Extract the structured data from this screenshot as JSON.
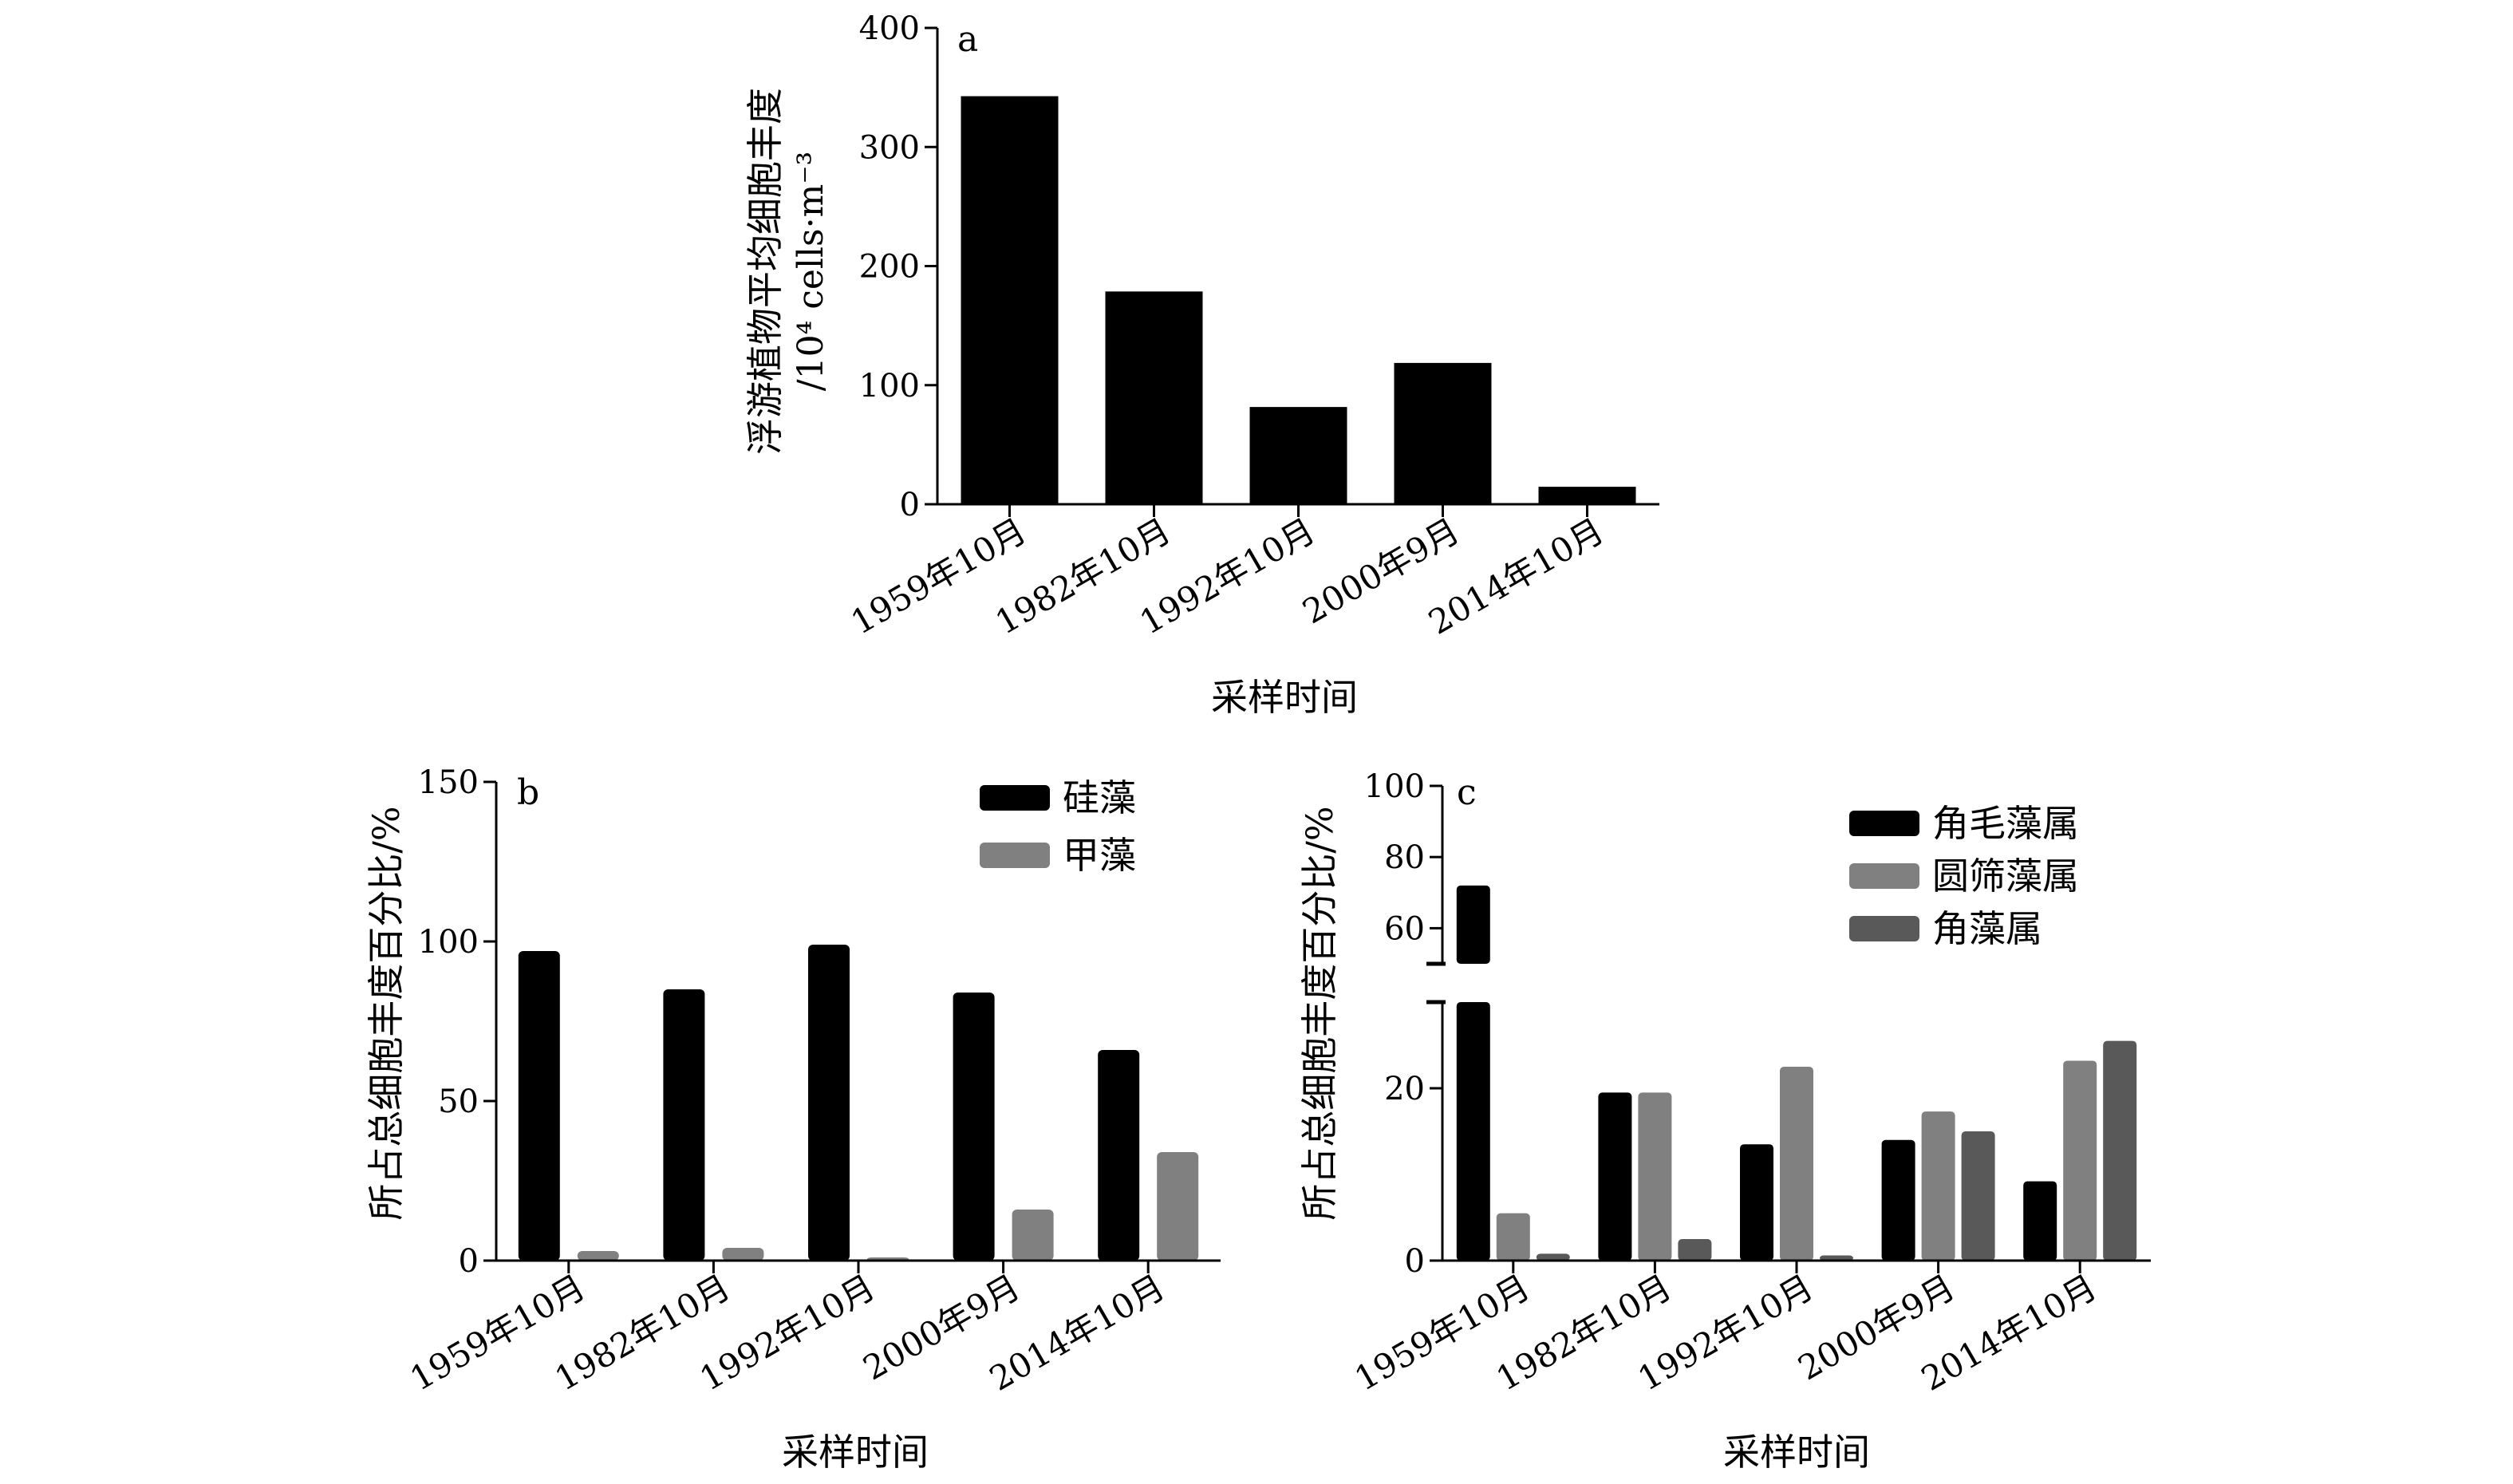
{
  "chart_data": [
    {
      "panel_label": "a",
      "type": "bar",
      "categories": [
        "1959年10月",
        "1982年10月",
        "1992年10月",
        "2000年9月",
        "2014年10月"
      ],
      "series": [
        {
          "values": [
            342,
            178,
            81,
            118,
            14
          ],
          "color": "#000000"
        }
      ],
      "xlabel": "采样时间",
      "ylabel_lines": [
        "浮游植物平均细胞丰度",
        "/10⁴ cells·m⁻³"
      ],
      "ylim": [
        0,
        400
      ],
      "yticks": [
        "0",
        "100",
        "200",
        "300",
        "400"
      ],
      "grid": false
    },
    {
      "panel_label": "b",
      "type": "bar",
      "categories": [
        "1959年10月",
        "1982年10月",
        "1992年10月",
        "2000年9月",
        "2014年10月"
      ],
      "series": [
        {
          "name": "硅藻",
          "values": [
            97,
            85,
            99,
            84,
            66
          ],
          "color": "#000000"
        },
        {
          "name": "甲藻",
          "values": [
            3,
            4,
            1,
            16,
            34
          ],
          "color": "#808080"
        }
      ],
      "xlabel": "采样时间",
      "ylabel": "所占总细胞丰度百分比/%",
      "ylim": [
        0,
        150
      ],
      "yticks": [
        "0",
        "50",
        "100",
        "150"
      ],
      "legend_position": "top-right",
      "grid": false
    },
    {
      "panel_label": "c",
      "type": "bar",
      "categories": [
        "1959年10月",
        "1982年10月",
        "1992年10月",
        "2000年9月",
        "2014年10月"
      ],
      "series": [
        {
          "name": "角毛藻属",
          "values": [
            72,
            19.5,
            13.5,
            14,
            9.2
          ],
          "color": "#000000"
        },
        {
          "name": "圆筛藻属",
          "values": [
            5.5,
            19.5,
            22.5,
            17.3,
            23.2
          ],
          "color": "#808080"
        },
        {
          "name": "角藻属",
          "values": [
            0.8,
            2.5,
            0.6,
            15,
            25.5
          ],
          "color": "#595959"
        }
      ],
      "xlabel": "采样时间",
      "ylabel": "所占总细胞丰度百分比/%",
      "ylim": [
        0,
        100
      ],
      "axis_break": [
        30,
        50
      ],
      "yticks": [
        "0",
        "20",
        "60",
        "80",
        "100"
      ],
      "legend_position": "top-right",
      "grid": false
    }
  ]
}
